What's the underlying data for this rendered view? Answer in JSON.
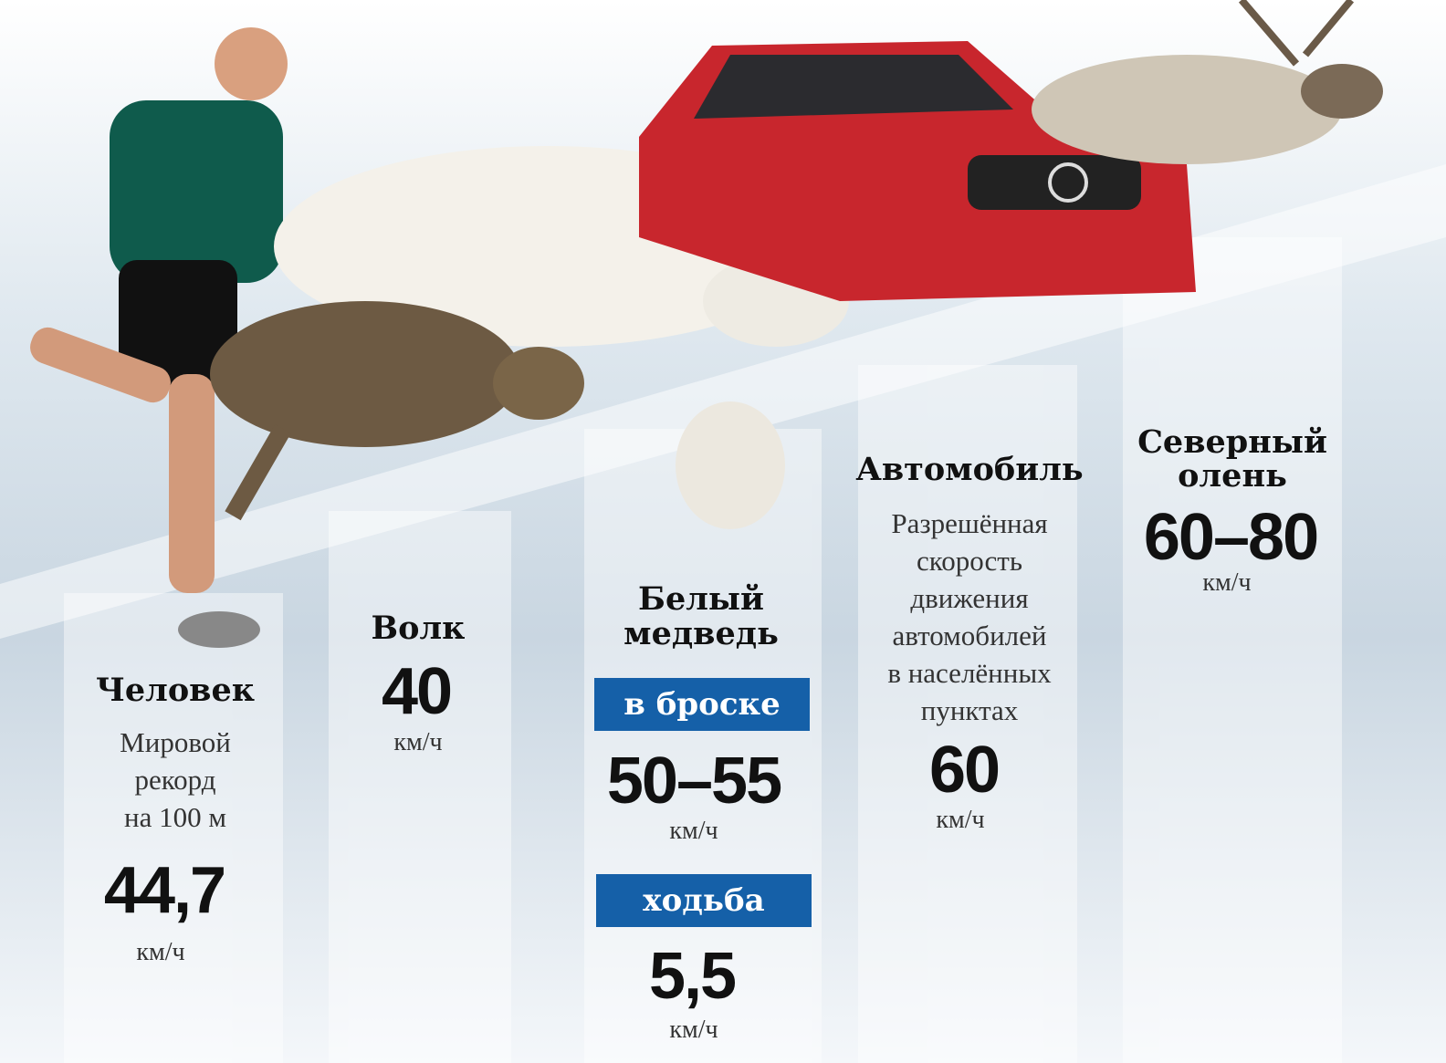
{
  "items": [
    {
      "name": [
        "Человек"
      ],
      "description": [
        "Мировой",
        "рекорд",
        "на 100 м"
      ],
      "value": "44,7",
      "unit": "км/ч"
    },
    {
      "name": [
        "Волк"
      ],
      "value": "40",
      "unit": "км/ч"
    },
    {
      "name": [
        "Белый",
        "медведь"
      ],
      "modes": [
        {
          "label": "в броске",
          "value": "50–55",
          "unit": "км/ч"
        },
        {
          "label": "ходьба",
          "value": "5,5",
          "unit": "км/ч"
        }
      ]
    },
    {
      "name": [
        "Автомобиль"
      ],
      "description": [
        "Разрешённая",
        "скорость",
        "движения",
        "автомобилей",
        "в населённых",
        "пунктах"
      ],
      "value": "60",
      "unit": "км/ч"
    },
    {
      "name": [
        "Северный",
        "олень"
      ],
      "value": "60–80",
      "unit": "км/ч"
    }
  ]
}
